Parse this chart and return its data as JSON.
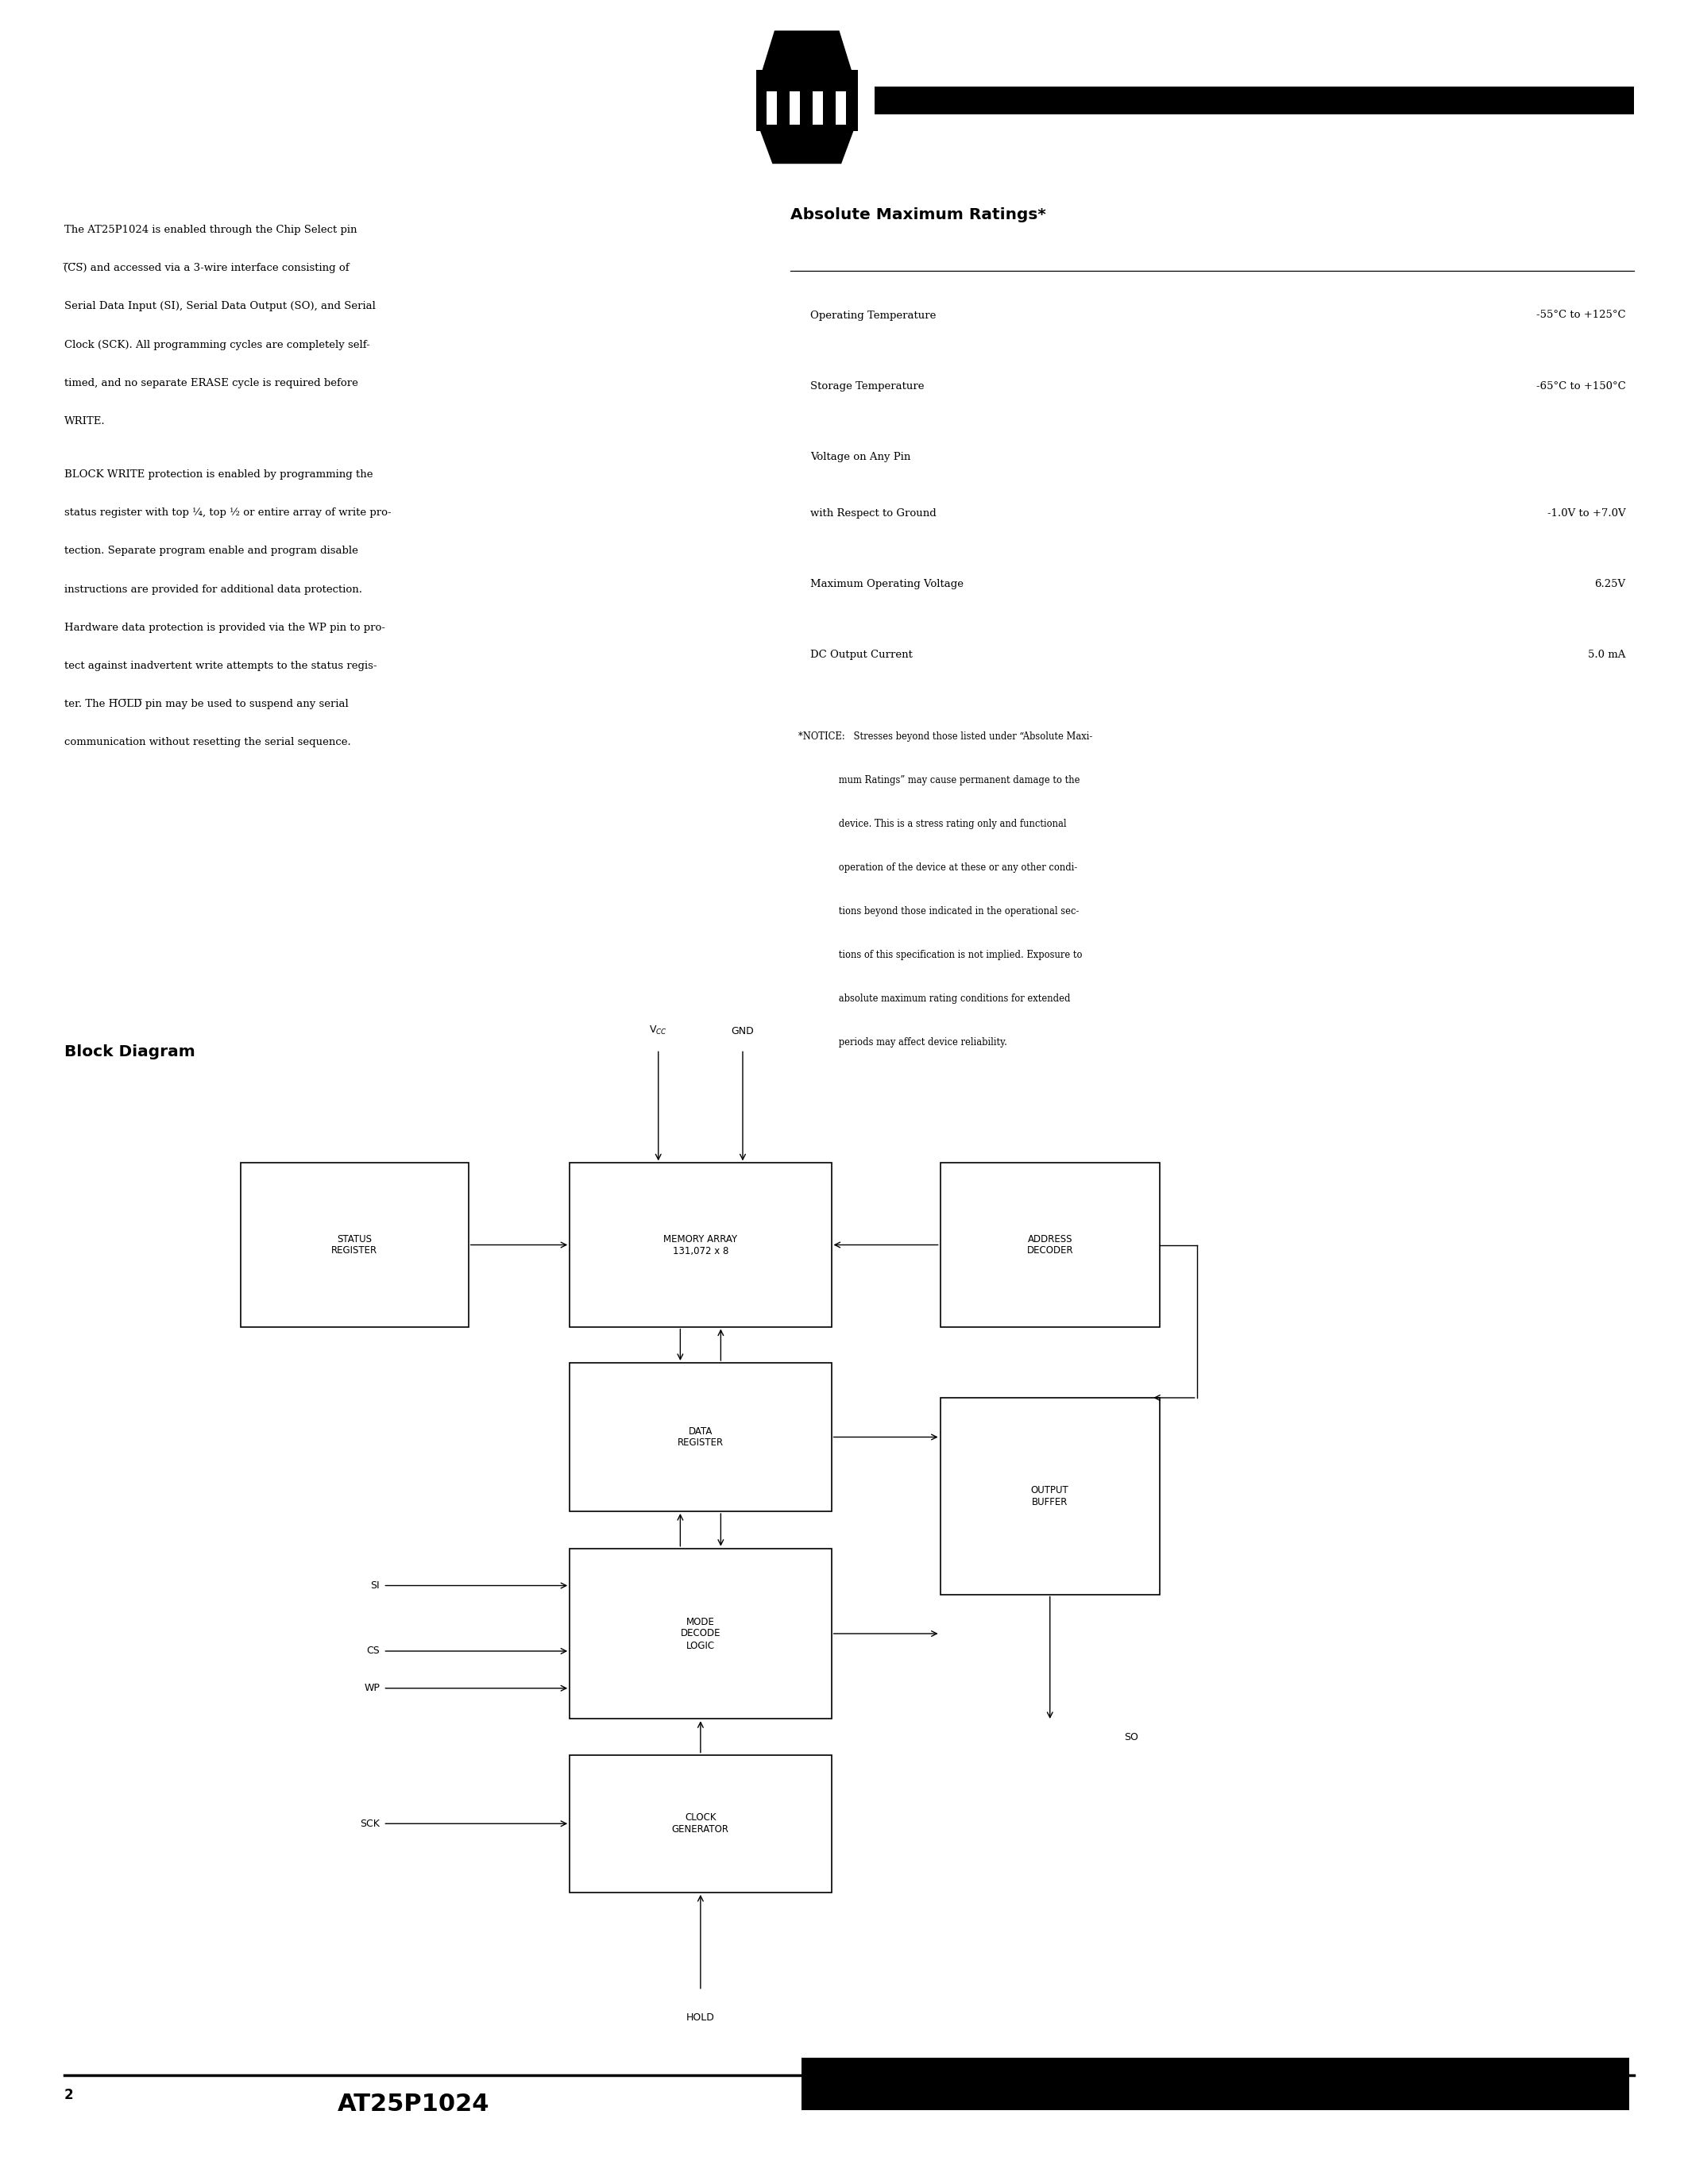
{
  "background_color": "#ffffff",
  "text_color": "#000000",
  "page_number": "2",
  "footer_title": "AT25P1024",
  "block_diagram_title": "Block Diagram",
  "abs_max_title": "Absolute Maximum Ratings*",
  "ratings": [
    {
      "label": "Operating Temperature",
      "value": "-55°C to +125°C"
    },
    {
      "label": "Storage Temperature",
      "value": "-65°C to +150°C"
    },
    {
      "label": "Voltage on Any Pin\nwith Respect to Ground",
      "value": "-1.0V to +7.0V"
    },
    {
      "label": "Maximum Operating Voltage",
      "value": "6.25V"
    },
    {
      "label": "DC Output Current",
      "value": "5.0 mA"
    }
  ],
  "notice_lines": [
    "*NOTICE:   Stresses beyond those listed under “Absolute Maxi-",
    "              mum Ratings” may cause permanent damage to the",
    "              device. This is a stress rating only and functional",
    "              operation of the device at these or any other condi-",
    "              tions beyond those indicated in the operational sec-",
    "              tions of this specification is not implied. Exposure to",
    "              absolute maximum rating conditions for extended",
    "              periods may affect device reliability."
  ],
  "para1_lines": [
    "The AT25P1024 is enabled through the Chip Select pin",
    "(̅C̅S̅) and accessed via a 3-wire interface consisting of",
    "Serial Data Input (SI), Serial Data Output (SO), and Serial",
    "Clock (SCK). All programming cycles are completely self-",
    "timed, and no separate ERASE cycle is required before",
    "WRITE."
  ],
  "para2_lines": [
    "BLOCK WRITE protection is enabled by programming the",
    "status register with top ¼, top ½ or entire array of write pro-",
    "tection. Separate program enable and program disable",
    "instructions are provided for additional data protection.",
    "Hardware data protection is provided via the WP pin to pro-",
    "tect against inadvertent write attempts to the status regis-",
    "ter. The H̅O̅L̅D̅ pin may be used to suspend any serial",
    "communication without resetting the serial sequence."
  ]
}
